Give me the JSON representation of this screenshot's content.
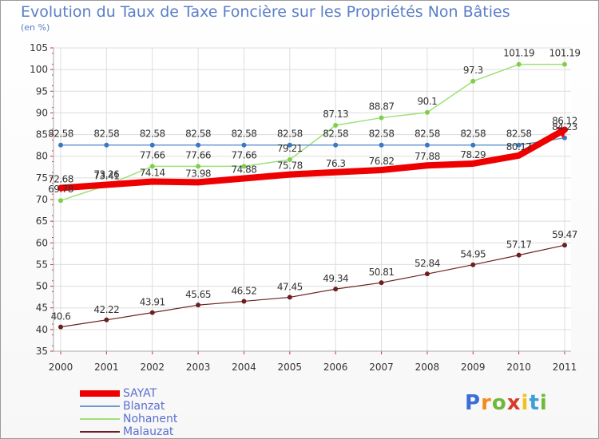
{
  "title": "Evolution du Taux de Taxe Foncière sur les Propriétés Non Bâties",
  "subtitle": "(en %)",
  "logo": {
    "letters": [
      "P",
      "r",
      "o",
      "x",
      "i",
      "t",
      "i"
    ],
    "colors": [
      "#3a6fd8",
      "#f28a1c",
      "#6fb83a",
      "#d83a2a",
      "#f2c21c",
      "#3aa0d8",
      "#6fb83a"
    ]
  },
  "chart_data": {
    "type": "line",
    "title": "Evolution du Taux de Taxe Foncière sur les Propriétés Non Bâties",
    "ylabel": "(en %)",
    "x": [
      "2000",
      "2001",
      "2002",
      "2003",
      "2004",
      "2005",
      "2006",
      "2007",
      "2008",
      "2009",
      "2010",
      "2011"
    ],
    "ylim": [
      35,
      105
    ],
    "yticks": [
      "35",
      "40",
      "45",
      "50",
      "55",
      "60",
      "65",
      "70",
      "75",
      "80",
      "85",
      "90",
      "95",
      "100",
      "105"
    ],
    "grid": true,
    "legend": "bottom-left",
    "series": [
      {
        "name": "SAYAT",
        "color": "#ee0000",
        "values": [
          72.68,
          73.41,
          74.14,
          73.98,
          74.88,
          75.78,
          76.3,
          76.82,
          77.88,
          78.29,
          80.17,
          86.12
        ],
        "labels": [
          "72.68",
          "73.41",
          "74.14",
          "73.98",
          "74.88",
          "75.78",
          "76.3",
          "76.82",
          "77.88",
          "78.29",
          "80.17",
          "86.12"
        ]
      },
      {
        "name": "Blanzat",
        "color": "#6a9bd0",
        "values": [
          82.58,
          82.58,
          82.58,
          82.58,
          82.58,
          82.58,
          82.58,
          82.58,
          82.58,
          82.58,
          82.58,
          84.23
        ],
        "labels": [
          "82.58",
          "82.58",
          "82.58",
          "82.58",
          "82.58",
          "82.58",
          "82.58",
          "82.58",
          "82.58",
          "82.58",
          "82.58",
          "84.23"
        ]
      },
      {
        "name": "Nohanent",
        "color": "#9ee07a",
        "values": [
          69.78,
          73.26,
          77.66,
          77.66,
          77.66,
          79.21,
          87.13,
          88.87,
          90.1,
          97.3,
          101.19,
          101.19
        ],
        "labels": [
          "69.78",
          "73.26",
          "77.66",
          "77.66",
          "77.66",
          "79.21",
          "87.13",
          "88.87",
          "90.1",
          "97.3",
          "101.19",
          "101.19"
        ]
      },
      {
        "name": "Malauzat",
        "color": "#6b2020",
        "values": [
          40.6,
          42.22,
          43.91,
          45.65,
          46.52,
          47.45,
          49.34,
          50.81,
          52.84,
          54.95,
          57.17,
          59.47
        ],
        "labels": [
          "40.6",
          "42.22",
          "43.91",
          "45.65",
          "46.52",
          "47.45",
          "49.34",
          "50.81",
          "52.84",
          "54.95",
          "57.17",
          "59.47"
        ]
      }
    ]
  }
}
